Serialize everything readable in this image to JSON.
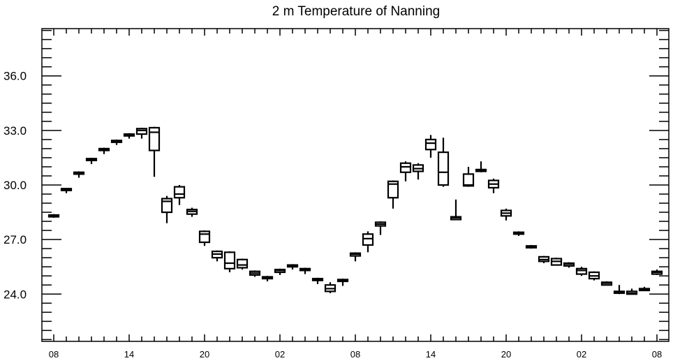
{
  "chart_data": {
    "type": "boxplot",
    "title": "2 m Temperature of Nanning",
    "xlabel": "",
    "ylabel": "",
    "ylim": [
      21.4,
      38.6
    ],
    "y_ticks": [
      "24.0",
      "27.0",
      "30.0",
      "33.0",
      "36.0"
    ],
    "x_tick_labels": [
      "08",
      "14",
      "20",
      "02",
      "08",
      "14",
      "20",
      "02",
      "08"
    ],
    "x_start_hour": 8,
    "x_hour_step": 1,
    "grid": false,
    "boxes": [
      {
        "hour": 8,
        "min": 28.2,
        "q1": 28.25,
        "median": 28.3,
        "q3": 28.35,
        "max": 28.4
      },
      {
        "hour": 9,
        "min": 29.55,
        "q1": 29.7,
        "median": 29.75,
        "q3": 29.8,
        "max": 29.8
      },
      {
        "hour": 10,
        "min": 30.4,
        "q1": 30.6,
        "median": 30.65,
        "q3": 30.7,
        "max": 30.75
      },
      {
        "hour": 11,
        "min": 31.15,
        "q1": 31.35,
        "median": 31.4,
        "q3": 31.45,
        "max": 31.5
      },
      {
        "hour": 12,
        "min": 31.7,
        "q1": 31.9,
        "median": 31.95,
        "q3": 32.0,
        "max": 32.05
      },
      {
        "hour": 13,
        "min": 32.2,
        "q1": 32.35,
        "median": 32.4,
        "q3": 32.45,
        "max": 32.5
      },
      {
        "hour": 14,
        "min": 32.55,
        "q1": 32.7,
        "median": 32.75,
        "q3": 32.8,
        "max": 32.85
      },
      {
        "hour": 15,
        "min": 32.55,
        "q1": 32.8,
        "median": 33.0,
        "q3": 33.1,
        "max": 33.15
      },
      {
        "hour": 16,
        "min": 30.45,
        "q1": 31.9,
        "median": 32.9,
        "q3": 33.15,
        "max": 33.2
      },
      {
        "hour": 17,
        "min": 27.9,
        "q1": 28.5,
        "median": 29.1,
        "q3": 29.25,
        "max": 29.4
      },
      {
        "hour": 18,
        "min": 28.9,
        "q1": 29.3,
        "median": 29.5,
        "q3": 29.9,
        "max": 30.0
      },
      {
        "hour": 19,
        "min": 28.25,
        "q1": 28.4,
        "median": 28.55,
        "q3": 28.65,
        "max": 28.75
      },
      {
        "hour": 20,
        "min": 26.65,
        "q1": 26.85,
        "median": 27.3,
        "q3": 27.45,
        "max": 27.5
      },
      {
        "hour": 21,
        "min": 25.8,
        "q1": 26.0,
        "median": 26.2,
        "q3": 26.35,
        "max": 26.4
      },
      {
        "hour": 22,
        "min": 25.2,
        "q1": 25.4,
        "median": 25.7,
        "q3": 26.3,
        "max": 26.35
      },
      {
        "hour": 23,
        "min": 25.35,
        "q1": 25.45,
        "median": 25.6,
        "q3": 25.9,
        "max": 25.95
      },
      {
        "hour": 0,
        "min": 24.95,
        "q1": 25.05,
        "median": 25.15,
        "q3": 25.25,
        "max": 25.3
      },
      {
        "hour": 1,
        "min": 24.7,
        "q1": 24.85,
        "median": 24.9,
        "q3": 24.95,
        "max": 25.0
      },
      {
        "hour": 2,
        "min": 25.05,
        "q1": 25.2,
        "median": 25.3,
        "q3": 25.35,
        "max": 25.4
      },
      {
        "hour": 3,
        "min": 25.35,
        "q1": 25.5,
        "median": 25.55,
        "q3": 25.6,
        "max": 25.65
      },
      {
        "hour": 4,
        "min": 25.1,
        "q1": 25.3,
        "median": 25.35,
        "q3": 25.4,
        "max": 25.45
      },
      {
        "hour": 5,
        "min": 24.55,
        "q1": 24.75,
        "median": 24.8,
        "q3": 24.85,
        "max": 24.9
      },
      {
        "hour": 6,
        "min": 24.05,
        "q1": 24.15,
        "median": 24.3,
        "q3": 24.5,
        "max": 24.65
      },
      {
        "hour": 7,
        "min": 24.45,
        "q1": 24.7,
        "median": 24.75,
        "q3": 24.8,
        "max": 24.85
      },
      {
        "hour": 8,
        "min": 25.8,
        "q1": 26.1,
        "median": 26.2,
        "q3": 26.25,
        "max": 26.3
      },
      {
        "hour": 9,
        "min": 26.3,
        "q1": 26.7,
        "median": 27.05,
        "q3": 27.3,
        "max": 27.45
      },
      {
        "hour": 10,
        "min": 27.25,
        "q1": 27.75,
        "median": 27.85,
        "q3": 27.95,
        "max": 28.0
      },
      {
        "hour": 11,
        "min": 28.7,
        "q1": 29.3,
        "median": 30.05,
        "q3": 30.2,
        "max": 30.25
      },
      {
        "hour": 12,
        "min": 30.2,
        "q1": 30.7,
        "median": 31.0,
        "q3": 31.2,
        "max": 31.3
      },
      {
        "hour": 13,
        "min": 30.3,
        "q1": 30.75,
        "median": 30.9,
        "q3": 31.1,
        "max": 31.2
      },
      {
        "hour": 14,
        "min": 31.5,
        "q1": 31.95,
        "median": 32.3,
        "q3": 32.5,
        "max": 32.75
      },
      {
        "hour": 15,
        "min": 29.9,
        "q1": 30.0,
        "median": 30.7,
        "q3": 31.8,
        "max": 32.6
      },
      {
        "hour": 16,
        "min": 28.1,
        "q1": 28.1,
        "median": 28.2,
        "q3": 28.25,
        "max": 29.2
      },
      {
        "hour": 17,
        "min": 29.9,
        "q1": 29.95,
        "median": 30.0,
        "q3": 30.6,
        "max": 31.0
      },
      {
        "hour": 18,
        "min": 30.7,
        "q1": 30.75,
        "median": 30.8,
        "q3": 30.85,
        "max": 31.3
      },
      {
        "hour": 19,
        "min": 29.55,
        "q1": 29.85,
        "median": 30.05,
        "q3": 30.25,
        "max": 30.35
      },
      {
        "hour": 20,
        "min": 28.05,
        "q1": 28.3,
        "median": 28.45,
        "q3": 28.6,
        "max": 28.7
      },
      {
        "hour": 21,
        "min": 27.2,
        "q1": 27.3,
        "median": 27.35,
        "q3": 27.4,
        "max": 27.45
      },
      {
        "hour": 22,
        "min": 26.5,
        "q1": 26.55,
        "median": 26.6,
        "q3": 26.65,
        "max": 26.7
      },
      {
        "hour": 23,
        "min": 25.7,
        "q1": 25.8,
        "median": 25.9,
        "q3": 26.05,
        "max": 26.1
      },
      {
        "hour": 0,
        "min": 25.6,
        "q1": 25.6,
        "median": 25.8,
        "q3": 25.95,
        "max": 26.0
      },
      {
        "hour": 1,
        "min": 25.45,
        "q1": 25.55,
        "median": 25.65,
        "q3": 25.7,
        "max": 25.75
      },
      {
        "hour": 2,
        "min": 25.0,
        "q1": 25.1,
        "median": 25.3,
        "q3": 25.4,
        "max": 25.5
      },
      {
        "hour": 3,
        "min": 24.75,
        "q1": 24.85,
        "median": 25.0,
        "q3": 25.2,
        "max": 25.25
      },
      {
        "hour": 4,
        "min": 24.5,
        "q1": 24.5,
        "median": 24.6,
        "q3": 24.65,
        "max": 24.7
      },
      {
        "hour": 5,
        "min": 24.0,
        "q1": 24.05,
        "median": 24.1,
        "q3": 24.15,
        "max": 24.5
      },
      {
        "hour": 6,
        "min": 24.0,
        "q1": 24.0,
        "median": 24.05,
        "q3": 24.15,
        "max": 24.3
      },
      {
        "hour": 7,
        "min": 24.2,
        "q1": 24.2,
        "median": 24.25,
        "q3": 24.3,
        "max": 24.4
      },
      {
        "hour": 8,
        "min": 25.05,
        "q1": 25.1,
        "median": 25.2,
        "q3": 25.25,
        "max": 25.35
      }
    ]
  }
}
